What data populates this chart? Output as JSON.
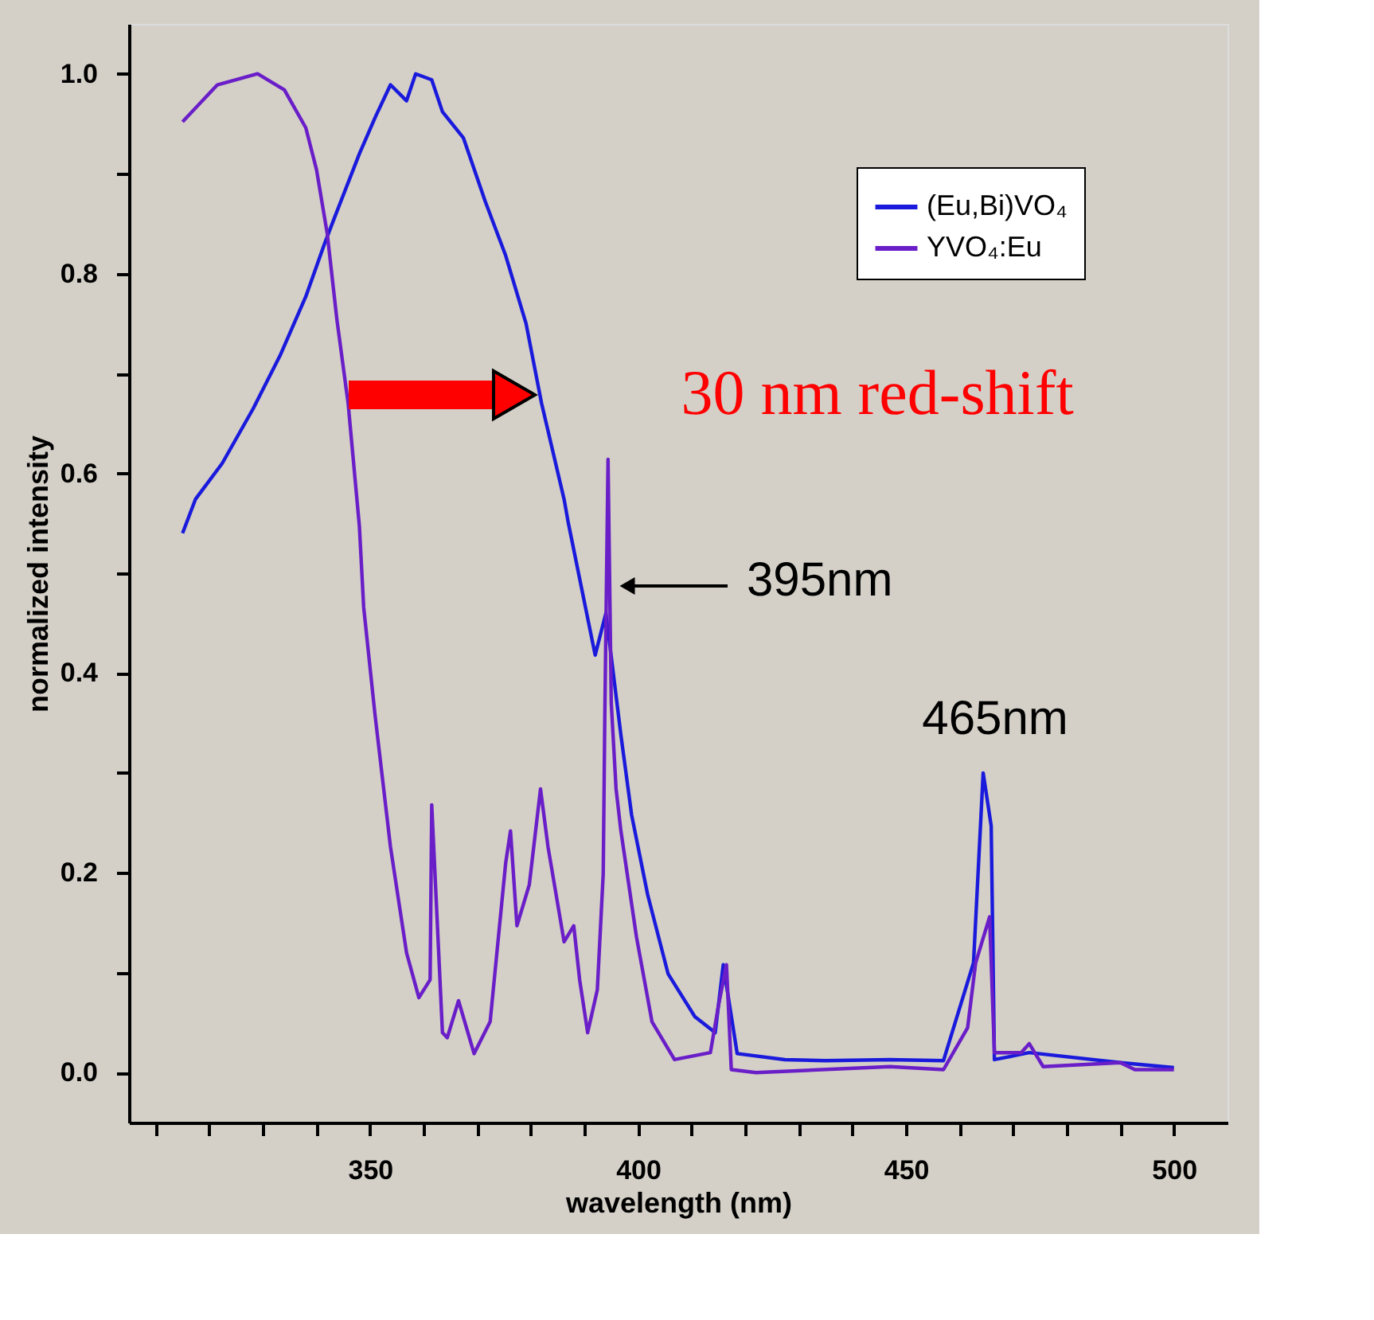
{
  "chart_data": {
    "type": "line",
    "xlabel": "wavelength (nm)",
    "ylabel": "normalized intensity",
    "xlim": [
      305,
      510
    ],
    "ylim": [
      -0.05,
      1.05
    ],
    "xticks": [
      {
        "value": 310,
        "label": null
      },
      {
        "value": 320,
        "label": null
      },
      {
        "value": 330,
        "label": null
      },
      {
        "value": 340,
        "label": null
      },
      350,
      {
        "value": 360,
        "label": null
      },
      {
        "value": 370,
        "label": null
      },
      {
        "value": 380,
        "label": null
      },
      {
        "value": 390,
        "label": null
      },
      400,
      {
        "value": 410,
        "label": null
      },
      {
        "value": 420,
        "label": null
      },
      {
        "value": 430,
        "label": null
      },
      {
        "value": 440,
        "label": null
      },
      450,
      {
        "value": 460,
        "label": null
      },
      {
        "value": 470,
        "label": null
      },
      {
        "value": 480,
        "label": null
      },
      {
        "value": 490,
        "label": null
      },
      500
    ],
    "yticks": [
      {
        "value": 0,
        "label": "0.0"
      },
      {
        "value": 0.1,
        "label": null
      },
      {
        "value": 0.2,
        "label": "0.2"
      },
      {
        "value": 0.3,
        "label": null
      },
      {
        "value": 0.4,
        "label": "0.4"
      },
      {
        "value": 0.5,
        "label": null
      },
      {
        "value": 0.6,
        "label": "0.6"
      },
      {
        "value": 0.7,
        "label": null
      },
      {
        "value": 0.8,
        "label": "0.8"
      },
      {
        "value": 0.9,
        "label": null
      },
      {
        "value": 1.0,
        "label": "1.0"
      }
    ],
    "grid": false,
    "legend": "top right",
    "marker": "none",
    "line_style": "solid",
    "series": [
      {
        "name": "(Eu,Bi)VO₄",
        "color": "#1a1adc",
        "x": [
          315,
          317.4,
          322.4,
          328.2,
          333.2,
          338,
          341.5,
          343.5,
          348,
          351,
          353.8,
          356.8,
          358.5,
          361.5,
          363.5,
          367.4,
          371.5,
          375.3,
          379.1,
          382,
          386.2,
          387,
          392,
          394,
          396.8,
          398.8,
          401.8,
          405.6,
          410.6,
          414.4,
          415.9,
          418.5,
          427.4,
          435,
          447,
          457,
          462.6,
          464.4,
          465.9,
          466.5,
          473,
          490,
          500
        ],
        "values": [
          0.54,
          0.574,
          0.61,
          0.665,
          0.718,
          0.777,
          0.83,
          0.858,
          0.92,
          0.957,
          0.989,
          0.973,
          1.0,
          0.994,
          0.962,
          0.936,
          0.872,
          0.818,
          0.75,
          0.67,
          0.574,
          0.55,
          0.418,
          0.46,
          0.338,
          0.258,
          0.178,
          0.099,
          0.056,
          0.04,
          0.108,
          0.019,
          0.013,
          0.012,
          0.013,
          0.012,
          0.11,
          0.3,
          0.247,
          0.013,
          0.02,
          0.01,
          0.005
        ]
      },
      {
        "name": "YVO₄:Eu",
        "color": "#6a1ec8",
        "x": [
          315,
          321.5,
          329,
          334,
          338,
          340,
          342,
          343.8,
          345.9,
          348,
          348.8,
          350.9,
          353.8,
          356.8,
          359.1,
          361.2,
          361.5,
          363.5,
          364.4,
          366.5,
          369.4,
          372.4,
          375.3,
          376.2,
          377.4,
          379.7,
          381.8,
          383.2,
          386.2,
          388,
          389.1,
          390.6,
          392.4,
          393.5,
          393.8,
          394.4,
          395,
          395.9,
          396.8,
          399.7,
          402.6,
          406.8,
          413.5,
          415,
          416.5,
          417.4,
          422,
          447,
          457,
          461.5,
          463,
          465.6,
          466.5,
          471.5,
          473,
          475.6,
          490,
          492.7,
          500
        ],
        "values": [
          0.952,
          0.989,
          1.0,
          0.984,
          0.946,
          0.904,
          0.84,
          0.754,
          0.67,
          0.547,
          0.466,
          0.359,
          0.226,
          0.12,
          0.075,
          0.093,
          0.268,
          0.04,
          0.035,
          0.072,
          0.019,
          0.051,
          0.21,
          0.242,
          0.147,
          0.188,
          0.284,
          0.226,
          0.131,
          0.147,
          0.093,
          0.04,
          0.083,
          0.199,
          0.359,
          0.614,
          0.37,
          0.284,
          0.242,
          0.136,
          0.051,
          0.013,
          0.02,
          0.067,
          0.108,
          0.003,
          0.0,
          0.006,
          0.003,
          0.045,
          0.11,
          0.156,
          0.02,
          0.02,
          0.029,
          0.006,
          0.01,
          0.003,
          0.003
        ]
      }
    ],
    "annotations": [
      "30 nm red-shift",
      "395nm",
      "465nm"
    ]
  }
}
